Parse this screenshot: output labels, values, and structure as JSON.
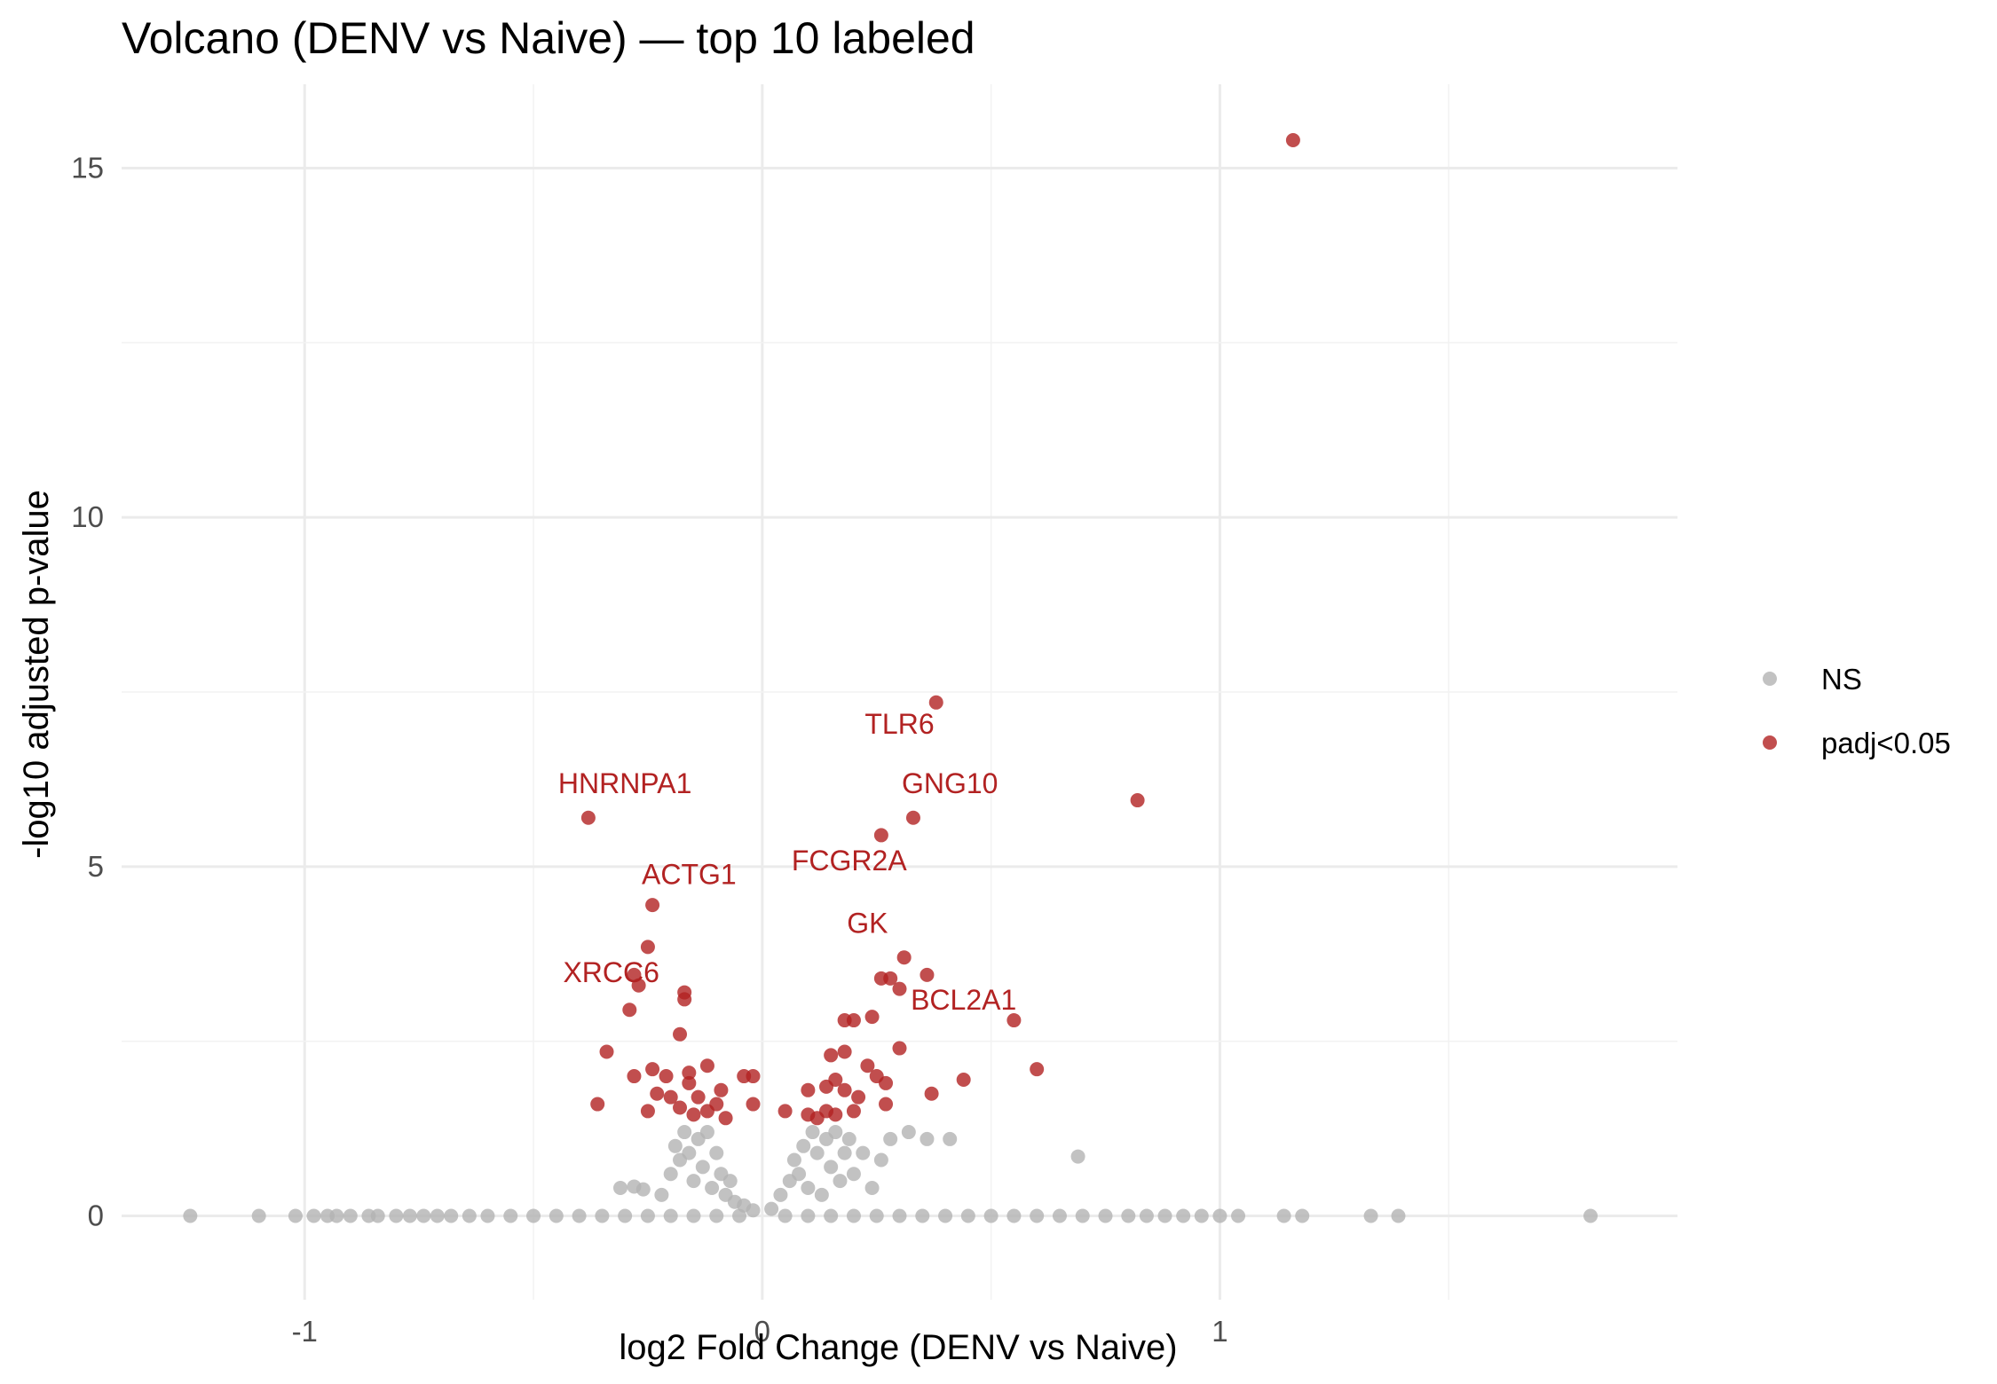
{
  "chart_data": {
    "type": "scatter",
    "title": "Volcano (DENV vs Naive) — top 10 labeled",
    "xlabel": "log2 Fold Change (DENV vs Naive)",
    "ylabel": "-log10 adjusted p-value",
    "xlim": [
      -1.4,
      2.0
    ],
    "ylim": [
      -1.2,
      16.2
    ],
    "x_ticks": [
      -1,
      0,
      1
    ],
    "x_tick_labels": [
      "-1",
      "0",
      "1"
    ],
    "y_ticks": [
      0,
      5,
      10,
      15
    ],
    "y_tick_labels": [
      "0",
      "5",
      "10",
      "15"
    ],
    "grid": true,
    "legend_position": "right",
    "legend": [
      {
        "label": "NS",
        "color": "#b3b3b3"
      },
      {
        "label": "padj<0.05",
        "color": "#b22222"
      }
    ],
    "series": [
      {
        "name": "NS",
        "color": "#b3b3b3",
        "points": [
          [
            -1.25,
            0
          ],
          [
            -1.1,
            0
          ],
          [
            -1.02,
            0
          ],
          [
            -0.98,
            0
          ],
          [
            -0.95,
            0
          ],
          [
            -0.93,
            0
          ],
          [
            -0.9,
            0
          ],
          [
            -0.86,
            0
          ],
          [
            -0.84,
            0
          ],
          [
            -0.8,
            0
          ],
          [
            -0.77,
            0
          ],
          [
            -0.74,
            0
          ],
          [
            -0.71,
            0
          ],
          [
            -0.68,
            0
          ],
          [
            -0.64,
            0
          ],
          [
            -0.6,
            0
          ],
          [
            -0.55,
            0
          ],
          [
            -0.5,
            0
          ],
          [
            -0.45,
            0
          ],
          [
            -0.4,
            0
          ],
          [
            -0.35,
            0
          ],
          [
            -0.3,
            0
          ],
          [
            -0.25,
            0
          ],
          [
            -0.2,
            0
          ],
          [
            -0.15,
            0
          ],
          [
            -0.1,
            0
          ],
          [
            -0.05,
            0
          ],
          [
            0.05,
            0
          ],
          [
            0.1,
            0
          ],
          [
            0.15,
            0
          ],
          [
            0.2,
            0
          ],
          [
            0.25,
            0
          ],
          [
            0.3,
            0
          ],
          [
            0.35,
            0
          ],
          [
            0.4,
            0
          ],
          [
            0.45,
            0
          ],
          [
            0.5,
            0
          ],
          [
            0.55,
            0
          ],
          [
            0.6,
            0
          ],
          [
            0.65,
            0
          ],
          [
            0.7,
            0
          ],
          [
            0.75,
            0
          ],
          [
            0.8,
            0
          ],
          [
            0.84,
            0
          ],
          [
            0.88,
            0
          ],
          [
            0.92,
            0
          ],
          [
            0.96,
            0
          ],
          [
            1.0,
            0
          ],
          [
            1.04,
            0
          ],
          [
            1.14,
            0
          ],
          [
            1.18,
            0
          ],
          [
            1.33,
            0
          ],
          [
            1.39,
            0
          ],
          [
            1.81,
            0
          ],
          [
            -0.31,
            0.4
          ],
          [
            -0.28,
            0.42
          ],
          [
            -0.26,
            0.38
          ],
          [
            -0.22,
            0.3
          ],
          [
            -0.2,
            0.6
          ],
          [
            -0.19,
            1.0
          ],
          [
            -0.18,
            0.8
          ],
          [
            -0.17,
            1.2
          ],
          [
            -0.16,
            0.9
          ],
          [
            -0.15,
            0.5
          ],
          [
            -0.14,
            1.1
          ],
          [
            -0.13,
            0.7
          ],
          [
            -0.12,
            1.2
          ],
          [
            -0.11,
            0.4
          ],
          [
            -0.1,
            0.9
          ],
          [
            -0.09,
            0.6
          ],
          [
            -0.08,
            0.3
          ],
          [
            -0.07,
            0.5
          ],
          [
            -0.06,
            0.2
          ],
          [
            -0.04,
            0.15
          ],
          [
            -0.02,
            0.08
          ],
          [
            0.02,
            0.1
          ],
          [
            0.04,
            0.3
          ],
          [
            0.06,
            0.5
          ],
          [
            0.07,
            0.8
          ],
          [
            0.08,
            0.6
          ],
          [
            0.09,
            1.0
          ],
          [
            0.1,
            0.4
          ],
          [
            0.11,
            1.2
          ],
          [
            0.12,
            0.9
          ],
          [
            0.13,
            0.3
          ],
          [
            0.14,
            1.1
          ],
          [
            0.15,
            0.7
          ],
          [
            0.16,
            1.2
          ],
          [
            0.17,
            0.5
          ],
          [
            0.18,
            0.9
          ],
          [
            0.19,
            1.1
          ],
          [
            0.2,
            0.6
          ],
          [
            0.22,
            0.9
          ],
          [
            0.24,
            0.4
          ],
          [
            0.26,
            0.8
          ],
          [
            0.28,
            1.1
          ],
          [
            0.32,
            1.2
          ],
          [
            0.36,
            1.1
          ],
          [
            0.41,
            1.1
          ],
          [
            0.69,
            0.85
          ]
        ]
      },
      {
        "name": "padj<0.05",
        "color": "#b22222",
        "points": [
          [
            1.16,
            15.4
          ],
          [
            0.38,
            7.35
          ],
          [
            0.82,
            5.95
          ],
          [
            -0.38,
            5.7
          ],
          [
            0.33,
            5.7
          ],
          [
            0.26,
            5.45
          ],
          [
            -0.24,
            4.45
          ],
          [
            -0.25,
            3.85
          ],
          [
            0.31,
            3.7
          ],
          [
            -0.28,
            3.45
          ],
          [
            0.26,
            3.4
          ],
          [
            0.28,
            3.4
          ],
          [
            0.36,
            3.45
          ],
          [
            -0.27,
            3.3
          ],
          [
            0.3,
            3.25
          ],
          [
            -0.17,
            3.2
          ],
          [
            -0.17,
            3.1
          ],
          [
            -0.29,
            2.95
          ],
          [
            0.24,
            2.85
          ],
          [
            0.18,
            2.8
          ],
          [
            0.2,
            2.8
          ],
          [
            0.55,
            2.8
          ],
          [
            -0.18,
            2.6
          ],
          [
            -0.34,
            2.35
          ],
          [
            0.15,
            2.3
          ],
          [
            0.18,
            2.35
          ],
          [
            0.3,
            2.4
          ],
          [
            0.6,
            2.1
          ],
          [
            0.23,
            2.15
          ],
          [
            -0.24,
            2.1
          ],
          [
            -0.12,
            2.15
          ],
          [
            0.44,
            1.95
          ],
          [
            -0.04,
            2.0
          ],
          [
            -0.02,
            2.0
          ],
          [
            0.37,
            1.75
          ],
          [
            0.25,
            2.0
          ],
          [
            0.27,
            1.9
          ],
          [
            -0.28,
            2.0
          ],
          [
            -0.21,
            2.0
          ],
          [
            -0.16,
            2.05
          ],
          [
            -0.09,
            1.8
          ],
          [
            -0.25,
            1.5
          ],
          [
            -0.36,
            1.6
          ],
          [
            -0.02,
            1.6
          ],
          [
            0.05,
            1.5
          ],
          [
            0.1,
            1.8
          ],
          [
            0.14,
            1.85
          ],
          [
            0.16,
            1.95
          ],
          [
            0.18,
            1.8
          ],
          [
            0.21,
            1.7
          ],
          [
            0.2,
            1.5
          ],
          [
            0.1,
            1.45
          ],
          [
            0.12,
            1.4
          ],
          [
            -0.23,
            1.75
          ],
          [
            -0.2,
            1.7
          ],
          [
            -0.18,
            1.55
          ],
          [
            -0.16,
            1.9
          ],
          [
            -0.15,
            1.45
          ],
          [
            -0.14,
            1.7
          ],
          [
            -0.12,
            1.5
          ],
          [
            -0.1,
            1.6
          ],
          [
            -0.08,
            1.4
          ],
          [
            0.14,
            1.5
          ],
          [
            0.16,
            1.45
          ],
          [
            0.27,
            1.6
          ]
        ]
      }
    ],
    "annotations": [
      {
        "text": "TLR6",
        "x": 0.3,
        "y": 6.9
      },
      {
        "text": "HNRNPA1",
        "x": -0.3,
        "y": 6.05
      },
      {
        "text": "GNG10",
        "x": 0.41,
        "y": 6.05
      },
      {
        "text": "ACTG1",
        "x": -0.16,
        "y": 4.75
      },
      {
        "text": "FCGR2A",
        "x": 0.19,
        "y": 4.95
      },
      {
        "text": "GK",
        "x": 0.23,
        "y": 4.05
      },
      {
        "text": "XRCC6",
        "x": -0.33,
        "y": 3.35
      },
      {
        "text": "BCL2A1",
        "x": 0.44,
        "y": 2.95
      }
    ]
  }
}
